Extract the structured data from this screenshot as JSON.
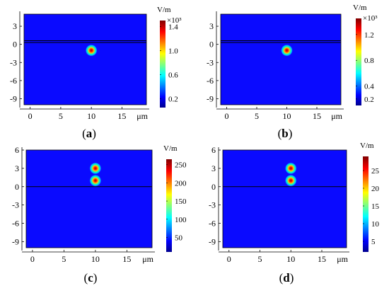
{
  "chart_data": [
    {
      "type": "heatmap",
      "caption": "(a)",
      "panel_letter": "a",
      "x_ticks": [
        "0",
        "5",
        "10",
        "15"
      ],
      "x_unit": "μm",
      "y_ticks": [
        "3",
        "0",
        "-3",
        "-6",
        "-9"
      ],
      "xlim": [
        -1,
        19
      ],
      "ylim": [
        -10,
        5
      ],
      "interface_lines_y": [
        0.3,
        0.6
      ],
      "hotspots": [
        {
          "x": 10,
          "y": -1,
          "level": 1.0
        }
      ],
      "colorbar": {
        "unit": "V/m",
        "multiplier": "×10³",
        "range": [
          0.05,
          1.5
        ],
        "ticks": [
          "1.4",
          "1.0",
          "0.6",
          "0.2"
        ]
      }
    },
    {
      "type": "heatmap",
      "caption": "(b)",
      "panel_letter": "b",
      "x_ticks": [
        "0",
        "5",
        "10",
        "15"
      ],
      "x_unit": "μm",
      "y_ticks": [
        "3",
        "0",
        "-3",
        "-6",
        "-9"
      ],
      "xlim": [
        -1,
        19
      ],
      "ylim": [
        -10,
        5
      ],
      "interface_lines_y": [
        0.3,
        0.6
      ],
      "hotspots": [
        {
          "x": 10,
          "y": -1,
          "level": 1.0
        }
      ],
      "colorbar": {
        "unit": "V/m",
        "multiplier": "×10³",
        "range": [
          0.1,
          1.45
        ],
        "ticks": [
          "1.2",
          "0.8",
          "0.4",
          "0.2"
        ]
      }
    },
    {
      "type": "heatmap",
      "caption": "(c)",
      "panel_letter": "c",
      "x_ticks": [
        "0",
        "5",
        "10",
        "15"
      ],
      "x_unit": "μm",
      "y_ticks": [
        "6",
        "3",
        "0",
        "-3",
        "-6",
        "-9"
      ],
      "xlim": [
        -1,
        19
      ],
      "ylim": [
        -10,
        6
      ],
      "interface_lines_y": [
        0
      ],
      "hotspots": [
        {
          "x": 10,
          "y": 3,
          "level": 1.0
        },
        {
          "x": 10,
          "y": 1,
          "level": 1.0
        }
      ],
      "colorbar": {
        "unit": "V/m",
        "multiplier": "",
        "range": [
          10,
          265
        ],
        "ticks": [
          "250",
          "200",
          "150",
          "100",
          "50"
        ]
      }
    },
    {
      "type": "heatmap",
      "caption": "(d)",
      "panel_letter": "d",
      "x_ticks": [
        "0",
        "5",
        "10",
        "15"
      ],
      "x_unit": "μm",
      "y_ticks": [
        "6",
        "3",
        "0",
        "-3",
        "-6",
        "-9"
      ],
      "xlim": [
        -1,
        19
      ],
      "ylim": [
        -10,
        6
      ],
      "interface_lines_y": [
        0
      ],
      "hotspots": [
        {
          "x": 10,
          "y": 3,
          "level": 1.0
        },
        {
          "x": 10,
          "y": 1,
          "level": 1.0
        }
      ],
      "colorbar": {
        "unit": "V/m",
        "multiplier": "",
        "range": [
          2,
          29
        ],
        "ticks": [
          "25",
          "20",
          "15",
          "10",
          "5"
        ]
      }
    }
  ],
  "colors": {
    "background_field": "#0a0aff",
    "interface_line": "#000000",
    "colormap": [
      "#00008f",
      "#0000ff",
      "#00ffff",
      "#ffff00",
      "#ff0000",
      "#800000"
    ]
  }
}
